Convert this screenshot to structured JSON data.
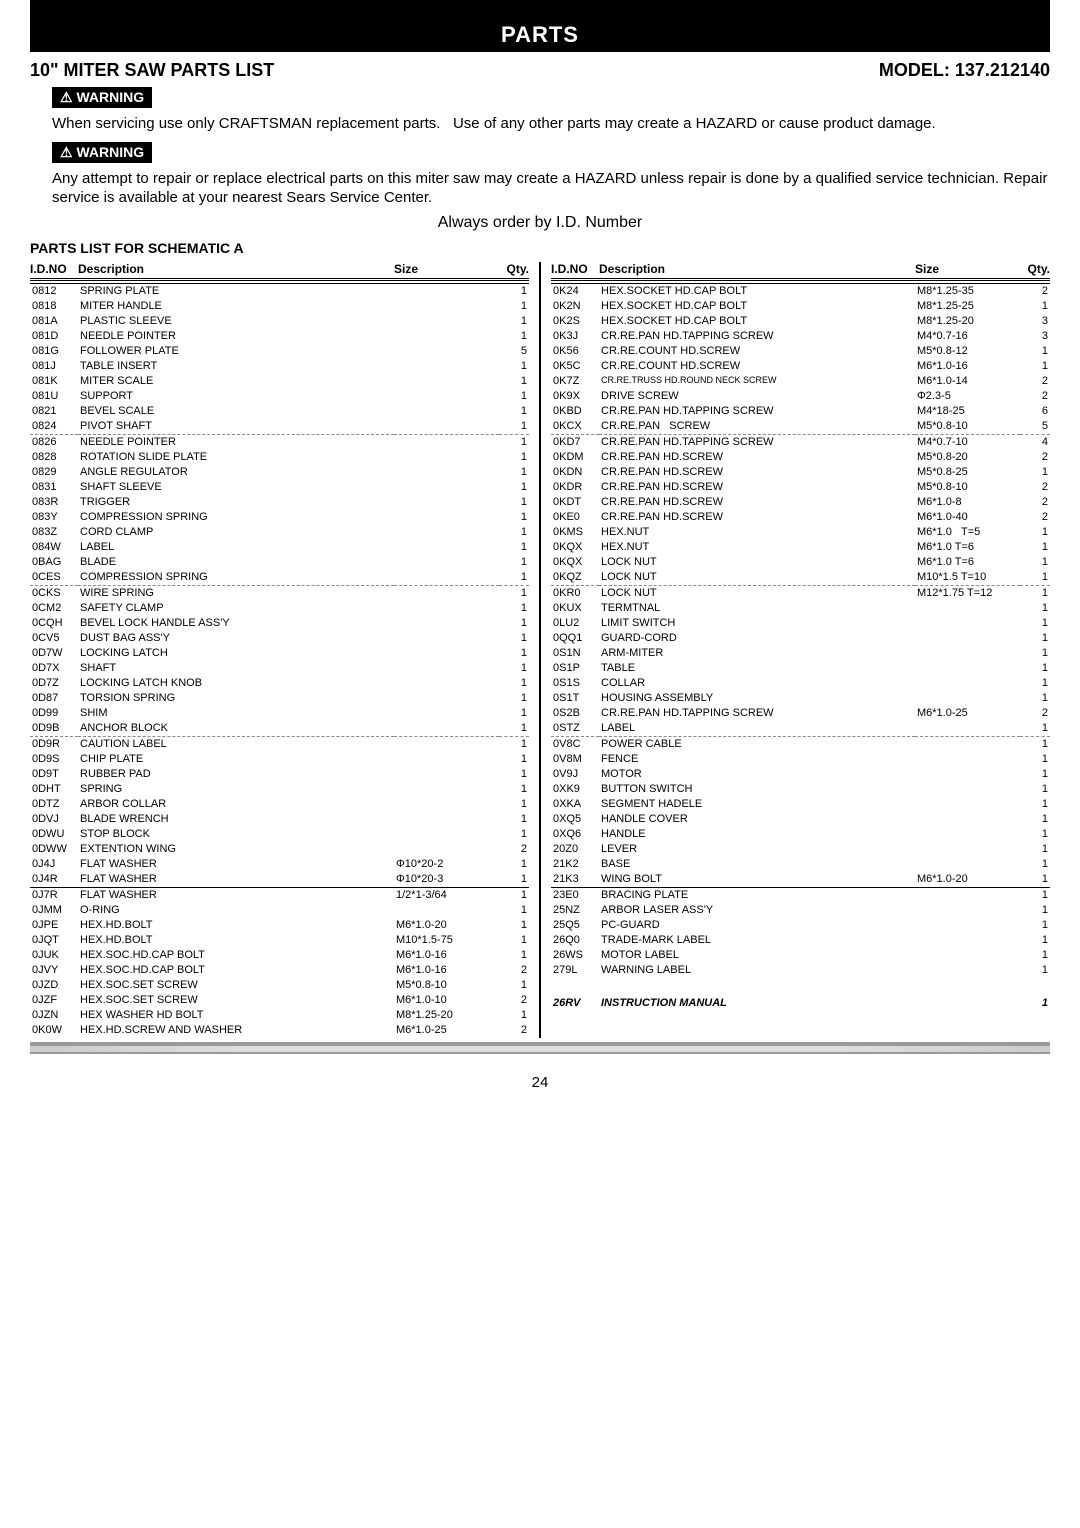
{
  "header": {
    "parts_label": "PARTS",
    "title_left": "10\" MITER SAW PARTS LIST",
    "title_right": "MODEL: 137.212140",
    "warning_label": "⚠ WARNING",
    "warning1": "When servicing use only CRAFTSMAN replacement parts.   Use of any other parts may create a HAZARD or cause product damage.",
    "warning2": "Any attempt to repair or replace electrical parts on this miter saw may create a HAZARD unless repair is done by a qualified service technician. Repair service is available at your nearest Sears Service Center.",
    "order_line": "Always order by I.D. Number",
    "schematic": "PARTS LIST FOR SCHEMATIC A"
  },
  "cols": {
    "id": "I.D.NO",
    "desc": "Description",
    "size": "Size",
    "qty": "Qty.",
    "id2": "I.D.NO",
    "desc2": "Description"
  },
  "left": [
    {
      "id": "0812",
      "desc": "SPRING PLATE",
      "size": "",
      "qty": "1",
      "hline": true
    },
    {
      "id": "0818",
      "desc": "MITER HANDLE",
      "size": "",
      "qty": "1"
    },
    {
      "id": "081A",
      "desc": "PLASTIC SLEEVE",
      "size": "",
      "qty": "1"
    },
    {
      "id": "081D",
      "desc": "NEEDLE POINTER",
      "size": "",
      "qty": "1"
    },
    {
      "id": "081G",
      "desc": "FOLLOWER PLATE",
      "size": "",
      "qty": "5"
    },
    {
      "id": "081J",
      "desc": "TABLE INSERT",
      "size": "",
      "qty": "1"
    },
    {
      "id": "081K",
      "desc": "MITER SCALE",
      "size": "",
      "qty": "1"
    },
    {
      "id": "081U",
      "desc": "SUPPORT",
      "size": "",
      "qty": "1"
    },
    {
      "id": "0821",
      "desc": "BEVEL SCALE",
      "size": "",
      "qty": "1"
    },
    {
      "id": "0824",
      "desc": "PIVOT SHAFT",
      "size": "",
      "qty": "1"
    },
    {
      "id": "0826",
      "desc": "NEEDLE POINTER",
      "size": "",
      "qty": "1",
      "sep": true
    },
    {
      "id": "0828",
      "desc": "ROTATION SLIDE PLATE",
      "size": "",
      "qty": "1"
    },
    {
      "id": "0829",
      "desc": "ANGLE REGULATOR",
      "size": "",
      "qty": "1"
    },
    {
      "id": "0831",
      "desc": "SHAFT SLEEVE",
      "size": "",
      "qty": "1"
    },
    {
      "id": "083R",
      "desc": "TRIGGER",
      "size": "",
      "qty": "1"
    },
    {
      "id": "083Y",
      "desc": "COMPRESSION SPRING",
      "size": "",
      "qty": "1"
    },
    {
      "id": "083Z",
      "desc": "CORD CLAMP",
      "size": "",
      "qty": "1"
    },
    {
      "id": "084W",
      "desc": "LABEL",
      "size": "",
      "qty": "1"
    },
    {
      "id": "0BAG",
      "desc": "BLADE",
      "size": "",
      "qty": "1"
    },
    {
      "id": "0CES",
      "desc": "COMPRESSION SPRING",
      "size": "",
      "qty": "1"
    },
    {
      "id": "0CKS",
      "desc": "WIRE SPRING",
      "size": "",
      "qty": "1",
      "sep": true
    },
    {
      "id": "0CM2",
      "desc": "SAFETY CLAMP",
      "size": "",
      "qty": "1"
    },
    {
      "id": "0CQH",
      "desc": "BEVEL LOCK HANDLE ASS'Y",
      "size": "",
      "qty": "1"
    },
    {
      "id": "0CV5",
      "desc": "DUST BAG ASS'Y",
      "size": "",
      "qty": "1"
    },
    {
      "id": "0D7W",
      "desc": "LOCKING LATCH",
      "size": "",
      "qty": "1"
    },
    {
      "id": "0D7X",
      "desc": "SHAFT",
      "size": "",
      "qty": "1"
    },
    {
      "id": "0D7Z",
      "desc": "LOCKING LATCH KNOB",
      "size": "",
      "qty": "1"
    },
    {
      "id": "0D87",
      "desc": "TORSION SPRING",
      "size": "",
      "qty": "1"
    },
    {
      "id": "0D99",
      "desc": "SHIM",
      "size": "",
      "qty": "1"
    },
    {
      "id": "0D9B",
      "desc": "ANCHOR BLOCK",
      "size": "",
      "qty": "1"
    },
    {
      "id": "0D9R",
      "desc": "CAUTION LABEL",
      "size": "",
      "qty": "1",
      "sep": true
    },
    {
      "id": "0D9S",
      "desc": "CHIP PLATE",
      "size": "",
      "qty": "1"
    },
    {
      "id": "0D9T",
      "desc": "RUBBER PAD",
      "size": "",
      "qty": "1"
    },
    {
      "id": "0DHT",
      "desc": "SPRING",
      "size": "",
      "qty": "1"
    },
    {
      "id": "0DTZ",
      "desc": "ARBOR COLLAR",
      "size": "",
      "qty": "1"
    },
    {
      "id": "0DVJ",
      "desc": "BLADE WRENCH",
      "size": "",
      "qty": "1"
    },
    {
      "id": "0DWU",
      "desc": "STOP BLOCK",
      "size": "",
      "qty": "1"
    },
    {
      "id": "0DWW",
      "desc": "EXTENTION WING",
      "size": "",
      "qty": "2"
    },
    {
      "id": "0J4J",
      "desc": "FLAT WASHER",
      "size": "Φ10*20-2",
      "qty": "1"
    },
    {
      "id": "0J4R",
      "desc": "FLAT WASHER",
      "size": "Φ10*20-3",
      "qty": "1"
    },
    {
      "id": "0J7R",
      "desc": "FLAT WASHER",
      "size": "1/2*1-3/64",
      "qty": "1",
      "hline": true
    },
    {
      "id": "0JMM",
      "desc": "O-RING",
      "size": "",
      "qty": "1"
    },
    {
      "id": "0JPE",
      "desc": "HEX.HD.BOLT",
      "size": "M6*1.0-20",
      "qty": "1"
    },
    {
      "id": "0JQT",
      "desc": "HEX.HD.BOLT",
      "size": "M10*1.5-75",
      "qty": "1"
    },
    {
      "id": "0JUK",
      "desc": "HEX.SOC.HD.CAP BOLT",
      "size": "M6*1.0-16",
      "qty": "1"
    },
    {
      "id": "0JVY",
      "desc": "HEX.SOC.HD.CAP BOLT",
      "size": "M6*1.0-16",
      "qty": "2"
    },
    {
      "id": "0JZD",
      "desc": "HEX.SOC.SET SCREW",
      "size": "M5*0.8-10",
      "qty": "1"
    },
    {
      "id": "0JZF",
      "desc": "HEX.SOC.SET SCREW",
      "size": "M6*1.0-10",
      "qty": "2"
    },
    {
      "id": "0JZN",
      "desc": "HEX WASHER HD BOLT",
      "size": "M8*1.25-20",
      "qty": "1"
    },
    {
      "id": "0K0W",
      "desc": "HEX.HD.SCREW AND WASHER",
      "size": "M6*1.0-25",
      "qty": "2"
    }
  ],
  "right": [
    {
      "id": "0K24",
      "desc": "HEX.SOCKET HD.CAP BOLT",
      "size": "M8*1.25-35",
      "qty": "2",
      "hline": true
    },
    {
      "id": "0K2N",
      "desc": "HEX.SOCKET HD.CAP BOLT",
      "size": "M8*1.25-25",
      "qty": "1"
    },
    {
      "id": "0K2S",
      "desc": "HEX.SOCKET HD.CAP BOLT",
      "size": "M8*1.25-20",
      "qty": "3"
    },
    {
      "id": "0K3J",
      "desc": "CR.RE.PAN HD.TAPPING SCREW",
      "size": "M4*0.7-16",
      "qty": "3"
    },
    {
      "id": "0K56",
      "desc": "CR.RE.COUNT HD.SCREW",
      "size": "M5*0.8-12",
      "qty": "1"
    },
    {
      "id": "0K5C",
      "desc": "CR.RE.COUNT HD.SCREW",
      "size": "M6*1.0-16",
      "qty": "1"
    },
    {
      "id": "0K7Z",
      "desc": "CR.RE.TRUSS HD.ROUND NECK SCREW",
      "size": "M6*1.0-14",
      "qty": "2",
      "small": true
    },
    {
      "id": "0K9X",
      "desc": "DRIVE SCREW",
      "size": "Φ2.3-5",
      "qty": "2"
    },
    {
      "id": "0KBD",
      "desc": "CR.RE.PAN HD.TAPPING SCREW",
      "size": "M4*18-25",
      "qty": "6"
    },
    {
      "id": "0KCX",
      "desc": "CR.RE.PAN   SCREW",
      "size": "M5*0.8-10",
      "qty": "5"
    },
    {
      "id": "0KD7",
      "desc": "CR.RE.PAN HD.TAPPING SCREW",
      "size": "M4*0.7-10",
      "qty": "4",
      "sep": true
    },
    {
      "id": "0KDM",
      "desc": "CR.RE.PAN HD.SCREW",
      "size": "M5*0.8-20",
      "qty": "2"
    },
    {
      "id": "0KDN",
      "desc": "CR.RE.PAN HD.SCREW",
      "size": "M5*0.8-25",
      "qty": "1"
    },
    {
      "id": "0KDR",
      "desc": "CR.RE.PAN HD.SCREW",
      "size": "M5*0.8-10",
      "qty": "2"
    },
    {
      "id": "0KDT",
      "desc": "CR.RE.PAN HD.SCREW",
      "size": "M6*1.0-8",
      "qty": "2"
    },
    {
      "id": "0KE0",
      "desc": "CR.RE.PAN HD.SCREW",
      "size": "M6*1.0-40",
      "qty": "2"
    },
    {
      "id": "0KMS",
      "desc": "HEX.NUT",
      "size": "M6*1.0   T=5",
      "qty": "1"
    },
    {
      "id": "0KQX",
      "desc": "HEX.NUT",
      "size": "M6*1.0 T=6",
      "qty": "1"
    },
    {
      "id": "0KQX",
      "desc": "LOCK NUT",
      "size": "M6*1.0 T=6",
      "qty": "1"
    },
    {
      "id": "0KQZ",
      "desc": "LOCK NUT",
      "size": "M10*1.5 T=10",
      "qty": "1"
    },
    {
      "id": "0KR0",
      "desc": "LOCK NUT",
      "size": "M12*1.75 T=12",
      "qty": "1",
      "sep": true
    },
    {
      "id": "0KUX",
      "desc": "TERMTNAL",
      "size": "",
      "qty": "1"
    },
    {
      "id": "0LU2",
      "desc": "LIMIT SWITCH",
      "size": "",
      "qty": "1"
    },
    {
      "id": "0QQ1",
      "desc": "GUARD-CORD",
      "size": "",
      "qty": "1"
    },
    {
      "id": "0S1N",
      "desc": "ARM-MITER",
      "size": "",
      "qty": "1"
    },
    {
      "id": "0S1P",
      "desc": "TABLE",
      "size": "",
      "qty": "1"
    },
    {
      "id": "0S1S",
      "desc": "COLLAR",
      "size": "",
      "qty": "1"
    },
    {
      "id": "0S1T",
      "desc": "HOUSING ASSEMBLY",
      "size": "",
      "qty": "1"
    },
    {
      "id": "0S2B",
      "desc": "CR.RE.PAN HD.TAPPING SCREW",
      "size": "M6*1.0-25",
      "qty": "2"
    },
    {
      "id": "0STZ",
      "desc": "LABEL",
      "size": "",
      "qty": "1"
    },
    {
      "id": "0V8C",
      "desc": "POWER CABLE",
      "size": "",
      "qty": "1",
      "sep": true
    },
    {
      "id": "0V8M",
      "desc": "FENCE",
      "size": "",
      "qty": "1"
    },
    {
      "id": "0V9J",
      "desc": "MOTOR",
      "size": "",
      "qty": "1"
    },
    {
      "id": "0XK9",
      "desc": "BUTTON SWITCH",
      "size": "",
      "qty": "1"
    },
    {
      "id": "0XKA",
      "desc": "SEGMENT HADELE",
      "size": "",
      "qty": "1"
    },
    {
      "id": "0XQ5",
      "desc": "HANDLE COVER",
      "size": "",
      "qty": "1"
    },
    {
      "id": "0XQ6",
      "desc": "HANDLE",
      "size": "",
      "qty": "1"
    },
    {
      "id": "20Z0",
      "desc": "LEVER",
      "size": "",
      "qty": "1"
    },
    {
      "id": "21K2",
      "desc": "BASE",
      "size": "",
      "qty": "1"
    },
    {
      "id": "21K3",
      "desc": "WING BOLT",
      "size": "M6*1.0-20",
      "qty": "1"
    },
    {
      "id": "23E0",
      "desc": "BRACING PLATE",
      "size": "",
      "qty": "1",
      "hline": true
    },
    {
      "id": "25NZ",
      "desc": "ARBOR LASER ASS'Y",
      "size": "",
      "qty": "1"
    },
    {
      "id": "25Q5",
      "desc": "PC-GUARD",
      "size": "",
      "qty": "1"
    },
    {
      "id": "26Q0",
      "desc": "TRADE-MARK LABEL",
      "size": "",
      "qty": "1"
    },
    {
      "id": "26WS",
      "desc": "MOTOR LABEL",
      "size": "",
      "qty": "1"
    },
    {
      "id": "279L",
      "desc": "WARNING LABEL",
      "size": "",
      "qty": "1"
    }
  ],
  "manual": {
    "id": "26RV",
    "desc": "INSTRUCTION MANUAL",
    "size": "",
    "qty": "1"
  },
  "page_num": "24"
}
